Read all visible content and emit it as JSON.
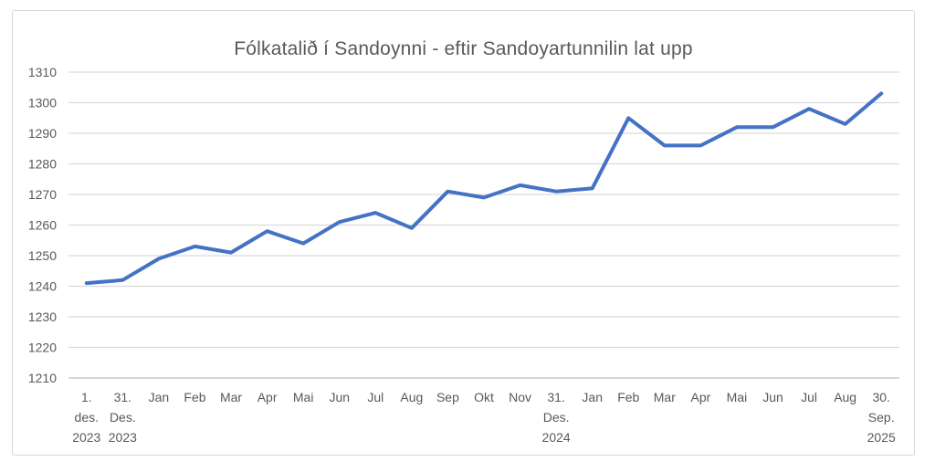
{
  "chart_data": {
    "type": "line",
    "title": "Fólkatalið í Sandoynni - eftir Sandoyartunnilin lat upp",
    "categories": [
      "1. des. 2023",
      "31. Des. 2023",
      "Jan",
      "Feb",
      "Mar",
      "Apr",
      "Mai",
      "Jun",
      "Jul",
      "Aug",
      "Sep",
      "Okt",
      "Nov",
      "31. Des. 2024",
      "Jan",
      "Feb",
      "Mar",
      "Apr",
      "Mai",
      "Jun",
      "Jul",
      "Aug",
      "30. Sep. 2025"
    ],
    "values": [
      1241,
      1242,
      1249,
      1253,
      1251,
      1258,
      1254,
      1261,
      1264,
      1259,
      1271,
      1269,
      1273,
      1271,
      1272,
      1295,
      1286,
      1286,
      1292,
      1292,
      1298,
      1293,
      1303
    ],
    "xlabel": "",
    "ylabel": "",
    "ylim": [
      1210,
      1310
    ],
    "ytick_step": 10,
    "grid": true,
    "legend": false,
    "colors": {
      "line": "#4472C4",
      "gridline": "#D9D9D9",
      "axis_line": "#BFBFBF",
      "tick_text": "#595959",
      "title_text": "#595959",
      "frame_border": "#D9D9D9",
      "background": "#FFFFFF"
    }
  }
}
